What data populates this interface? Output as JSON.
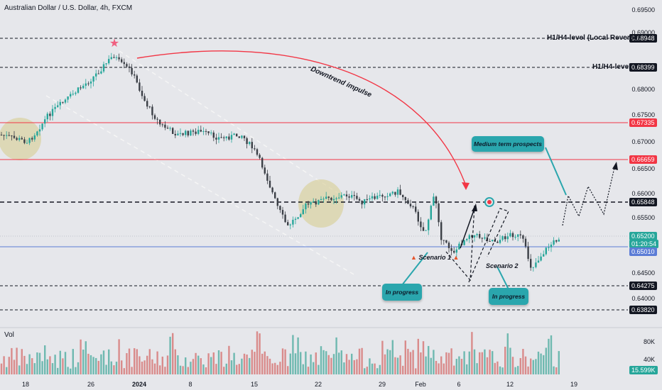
{
  "header": {
    "title": "Australian Dollar / U.S. Dollar, 4h, FXCM",
    "volume_label": "Vol"
  },
  "price_axis": {
    "ticks": [
      "0.69500",
      "0.69000",
      "0.68500",
      "0.68000",
      "0.67500",
      "0.67000",
      "0.66500",
      "0.66000",
      "0.65500",
      "0.65000",
      "0.64500",
      "0.64000"
    ],
    "badges": {
      "local_reverse": "0.68948",
      "h1h4": "0.68399",
      "red_upper": "0.67335",
      "red_lower": "0.66659",
      "pivot": "0.65848",
      "current": "0.65200",
      "countdown": "01:20:54",
      "blue": "0.65010",
      "support1": "0.64275",
      "support2": "0.63820"
    }
  },
  "volume_axis": {
    "ticks": [
      "80K",
      "40K"
    ],
    "current": "15.599K"
  },
  "time_axis": {
    "ticks": [
      "18",
      "26",
      "2024",
      "8",
      "15",
      "22",
      "29",
      "Feb",
      "6",
      "12",
      "19"
    ]
  },
  "levels": {
    "local_reverse_label": "H1/H4-level (Local Reverse)",
    "h1h4_label": "H1/H4-level"
  },
  "annotations": {
    "downtrend": "Downtrend impulse",
    "scenario1": "Scenario 1",
    "scenario2": "Scenario 2",
    "in_progress_1": "In progress",
    "in_progress_2": "In progress",
    "medium_term": "Medium term prospects"
  },
  "colors": {
    "background": "#e6e7eb",
    "bull": "#26a69a",
    "bear": "#3b3f46",
    "red_level": "#f23645",
    "blue_level": "#5b7cd6",
    "teal_callout": "#2aa6ad"
  }
}
